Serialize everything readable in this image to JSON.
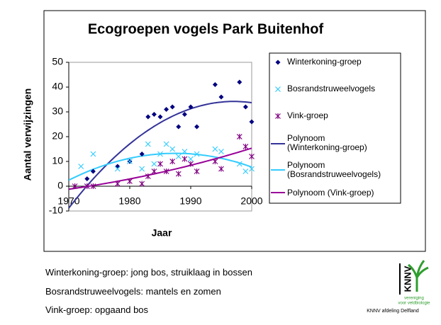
{
  "chart_data": {
    "type": "scatter",
    "title": "Ecogroepen vogels Park Buitenhof",
    "xlabel": "Jaar",
    "ylabel": "Aantal verwijzingen",
    "xlim": [
      1970,
      2000
    ],
    "xticks": [
      1970,
      1980,
      1990,
      2000
    ],
    "ylim": [
      -10,
      50
    ],
    "yticks": [
      -10,
      0,
      10,
      20,
      30,
      40,
      50
    ],
    "series": [
      {
        "name": "Winterkoning-groep",
        "color": "#000080",
        "marker": "diamond",
        "x": [
          1973,
          1974,
          1978,
          1980,
          1982,
          1983,
          1984,
          1985,
          1986,
          1987,
          1988,
          1989,
          1990,
          1991,
          1994,
          1995,
          1998,
          1999,
          2000
        ],
        "values": [
          3,
          6,
          8,
          10,
          13,
          28,
          29,
          28,
          31,
          32,
          24,
          29,
          32,
          24,
          41,
          36,
          42,
          32,
          26
        ]
      },
      {
        "name": "Bosrandstruweelvogels",
        "color": "#33ccff",
        "marker": "x",
        "x": [
          1972,
          1973,
          1974,
          1978,
          1980,
          1982,
          1983,
          1984,
          1985,
          1986,
          1987,
          1988,
          1989,
          1990,
          1991,
          1994,
          1995,
          1998,
          1999,
          2000
        ],
        "values": [
          8,
          0,
          13,
          7,
          10,
          7,
          17,
          9,
          13,
          17,
          15,
          12,
          14,
          11,
          13,
          15,
          14,
          9,
          6,
          7
        ]
      },
      {
        "name": "Vink-groep",
        "color": "#800080",
        "marker": "asterisk",
        "x": [
          1971,
          1973,
          1974,
          1978,
          1980,
          1982,
          1983,
          1984,
          1985,
          1986,
          1987,
          1988,
          1989,
          1990,
          1991,
          1994,
          1995,
          1998,
          1999,
          2000
        ],
        "values": [
          0,
          0,
          0,
          1,
          2,
          1,
          4,
          6,
          9,
          6,
          10,
          5,
          11,
          9,
          6,
          10,
          7,
          20,
          16,
          12
        ]
      }
    ],
    "trendlines": [
      {
        "name": "Polynoom (Winterkoning-groep)",
        "color": "#333399"
      },
      {
        "name": "Polynoom (Bosrandstruweelvogels)",
        "color": "#33ccff"
      },
      {
        "name": "Polynoom (Vink-groep)",
        "color": "#990099"
      }
    ]
  },
  "notes": [
    "Winterkoning-groep: jong bos, struiklaag in bossen",
    "Bosrandstruweelvogels: mantels en zomen",
    "Vink-groep: opgaand bos"
  ],
  "logo": {
    "name": "KNNV",
    "tagline_1": "vereniging",
    "tagline_2": "voor veldbiologie",
    "caption": "KNNV afdeling Delfland"
  }
}
